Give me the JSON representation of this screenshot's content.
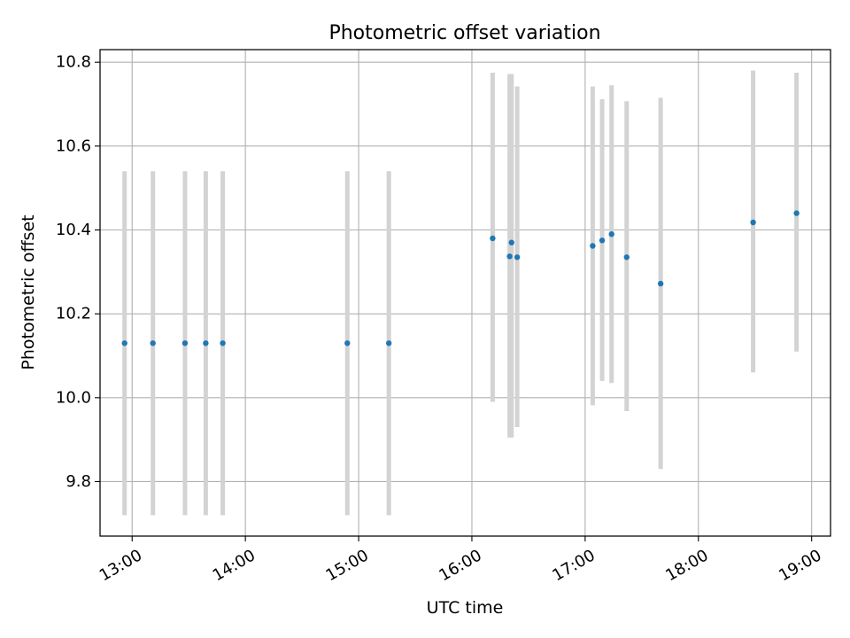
{
  "chart_data": {
    "type": "scatter",
    "title": "Photometric offset variation",
    "xlabel": "UTC time",
    "ylabel": "Photometric offset",
    "x_ticks": [
      "13:00",
      "14:00",
      "15:00",
      "16:00",
      "17:00",
      "18:00",
      "19:00"
    ],
    "y_ticks": [
      "9.8",
      "10.0",
      "10.2",
      "10.4",
      "10.6",
      "10.8"
    ],
    "xlim": [
      "12:43",
      "19:10"
    ],
    "ylim": [
      9.67,
      10.83
    ],
    "grid": true,
    "colors": {
      "point": "#1f77b4",
      "errorbar": "#d3d3d3",
      "grid": "#b0b0b0"
    },
    "points": [
      {
        "x": "12:56",
        "y": 10.13,
        "ylow": 9.72,
        "yhigh": 10.54
      },
      {
        "x": "13:11",
        "y": 10.13,
        "ylow": 9.72,
        "yhigh": 10.54
      },
      {
        "x": "13:28",
        "y": 10.13,
        "ylow": 9.72,
        "yhigh": 10.54
      },
      {
        "x": "13:39",
        "y": 10.13,
        "ylow": 9.72,
        "yhigh": 10.54
      },
      {
        "x": "13:48",
        "y": 10.13,
        "ylow": 9.72,
        "yhigh": 10.54
      },
      {
        "x": "14:54",
        "y": 10.13,
        "ylow": 9.72,
        "yhigh": 10.54
      },
      {
        "x": "15:16",
        "y": 10.13,
        "ylow": 9.72,
        "yhigh": 10.54
      },
      {
        "x": "16:11",
        "y": 10.38,
        "ylow": 9.99,
        "yhigh": 10.775
      },
      {
        "x": "16:20",
        "y": 10.337,
        "ylow": 9.905,
        "yhigh": 10.772
      },
      {
        "x": "16:21",
        "y": 10.37,
        "ylow": 9.905,
        "yhigh": 10.772
      },
      {
        "x": "16:24",
        "y": 10.335,
        "ylow": 9.93,
        "yhigh": 10.742
      },
      {
        "x": "17:04",
        "y": 10.362,
        "ylow": 9.982,
        "yhigh": 10.742
      },
      {
        "x": "17:09",
        "y": 10.375,
        "ylow": 10.04,
        "yhigh": 10.712
      },
      {
        "x": "17:14",
        "y": 10.39,
        "ylow": 10.035,
        "yhigh": 10.745
      },
      {
        "x": "17:22",
        "y": 10.335,
        "ylow": 9.968,
        "yhigh": 10.707
      },
      {
        "x": "17:40",
        "y": 10.272,
        "ylow": 9.83,
        "yhigh": 10.715
      },
      {
        "x": "18:29",
        "y": 10.418,
        "ylow": 10.06,
        "yhigh": 10.78
      },
      {
        "x": "18:52",
        "y": 10.44,
        "ylow": 10.11,
        "yhigh": 10.775
      }
    ]
  }
}
